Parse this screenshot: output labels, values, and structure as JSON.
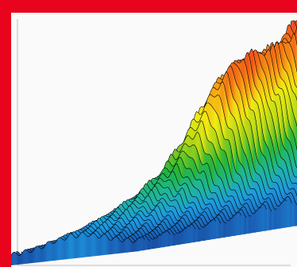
{
  "colors": {
    "frame": "#e8041c",
    "panel": "#fafafa",
    "axis": "#bdbdbd",
    "outline": "#000000"
  },
  "chart_data": {
    "type": "area",
    "subtype": "3d-waterfall-surface",
    "title": "",
    "xlabel": "",
    "ylabel": "",
    "grid": false,
    "legend": "none",
    "ticks_shown": false,
    "colormap": [
      "#18307c",
      "#1a62b8",
      "#1e9ae0",
      "#20b6a0",
      "#1fb43a",
      "#a8d318",
      "#f2ec14",
      "#f6a414",
      "#f0461a",
      "#e01466"
    ],
    "series_count": 48,
    "samples_per_series": 80,
    "value_range": [
      0,
      1
    ],
    "surface": {
      "peak_height": 1.0,
      "peak_series_position": 0.96,
      "peak_sample_position": 0.5,
      "secondary_peak_height": 0.78,
      "secondary_peak_series_position": 0.62,
      "ridge_count": 4
    }
  }
}
